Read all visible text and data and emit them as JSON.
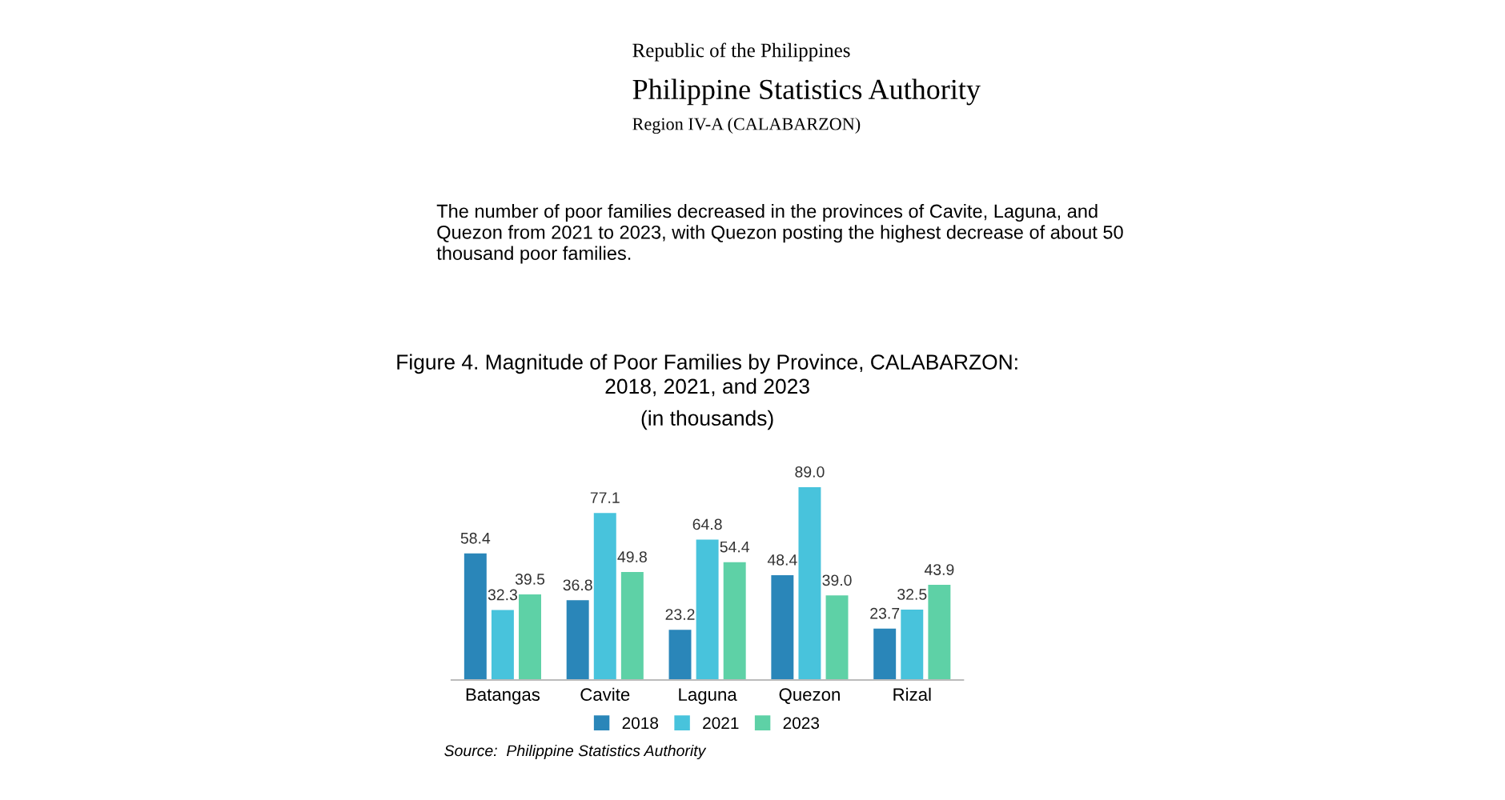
{
  "chart_data": {
    "type": "bar",
    "title": "Figure 4. Magnitude of Poor Families by Province, CALABARZON:\n2018, 2021, and 2023",
    "subtitle": "(in thousands)",
    "annotations": [
      "Republic of the Philippines",
      "Philippine Statistics Authority",
      "Region IV-A (CALABARZON)",
      "The number of poor families decreased in the provinces of Cavite, Laguna, and\nQuezon from 2021 to 2023, with Quezon posting the highest decrease of about 50\nthousand poor families.",
      "Source:  Philippine Statistics Authority"
    ],
    "categories": [
      "Batangas",
      "Cavite",
      "Laguna",
      "Quezon",
      "Rizal"
    ],
    "series": [
      {
        "name": "2018",
        "color": "#2a86b9",
        "values": [
          58.4,
          36.8,
          23.2,
          48.4,
          23.7
        ],
        "value_labels": [
          "58.4",
          "36.8",
          "23.2",
          "48.4",
          "23.7"
        ]
      },
      {
        "name": "2021",
        "color": "#48c3dc",
        "values": [
          32.3,
          77.1,
          64.8,
          89.0,
          32.5
        ],
        "value_labels": [
          "32.3",
          "77.1",
          "64.8",
          "89.0",
          "32.5"
        ]
      },
      {
        "name": "2023",
        "color": "#5ed1a6",
        "values": [
          39.5,
          49.8,
          54.4,
          39.0,
          43.9
        ],
        "value_labels": [
          "39.5",
          "49.8",
          "54.4",
          "39.0",
          "43.9"
        ]
      }
    ],
    "legend": "bottom",
    "grid": false
  }
}
